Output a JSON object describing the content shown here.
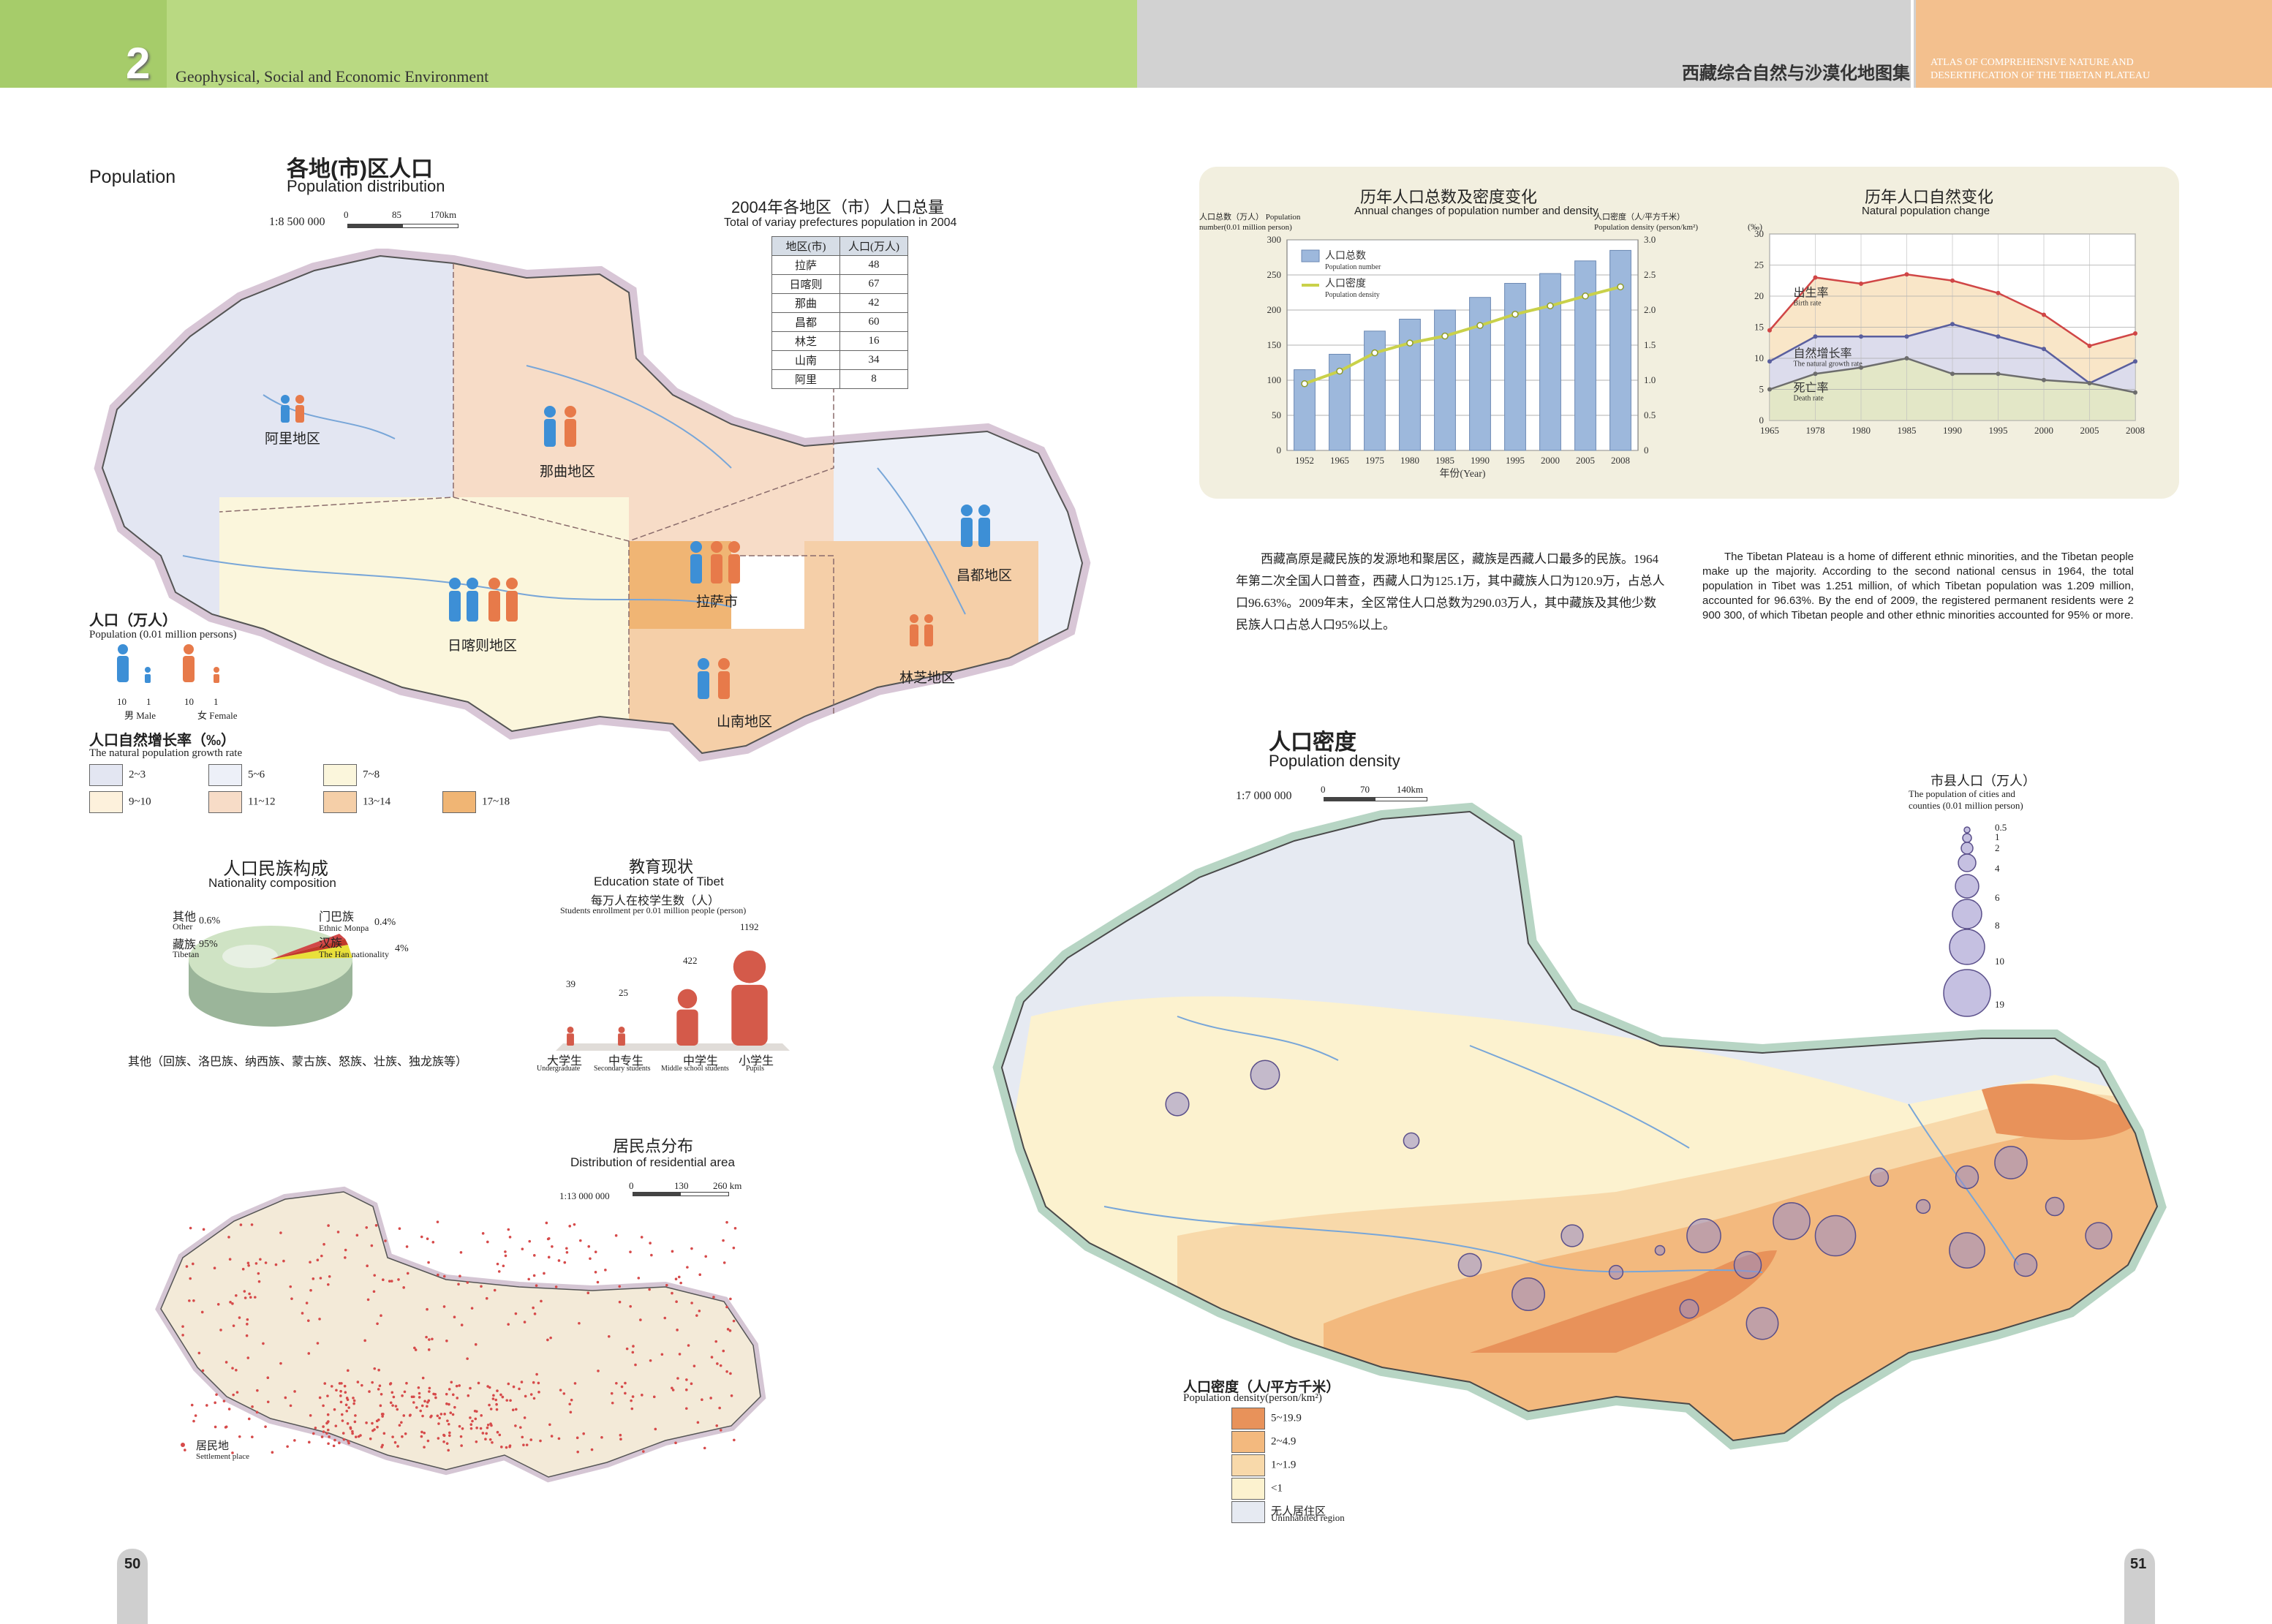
{
  "header": {
    "chapter_number": "2",
    "chapter_title": "Geophysical, Social and Economic Environment",
    "atlas_title_cn": "西藏综合自然与沙漠化地图集",
    "atlas_title_en_1": "ATLAS OF COMPREHENSIVE NATURE AND",
    "atlas_title_en_2": "DESERTIFICATION OF THE TIBETAN PLATEAU"
  },
  "colors": {
    "left_bar": "#b9d982",
    "grey_bar": "#d2d2d2",
    "orange_bar": "#f3c08e",
    "panel_bg": "#f2efdf"
  },
  "section_label": "Population",
  "dist_map": {
    "title_cn": "各地(市)区人口",
    "title_en": "Population distribution",
    "scale": "1:8 500 000",
    "scale_ticks": [
      "0",
      "85",
      "170km"
    ],
    "regions": [
      "阿里地区",
      "那曲地区",
      "日喀则地区",
      "拉萨市",
      "昌都地区",
      "林芝地区",
      "山南地区"
    ],
    "pop_legend_title_cn": "人口（万人）",
    "pop_legend_title_en": "Population (0.01 million persons)",
    "pop_legend_values": [
      "10",
      "1",
      "10",
      "1"
    ],
    "male_label": "男 Male",
    "female_label": "女 Female",
    "growth_title_cn": "人口自然增长率（‰）",
    "growth_title_en": "The natural population growth rate",
    "growth_classes": [
      {
        "label": "2~3",
        "color": "#e3e6f2"
      },
      {
        "label": "5~6",
        "color": "#edf0f8"
      },
      {
        "label": "7~8",
        "color": "#fbf6dc"
      },
      {
        "label": "9~10",
        "color": "#fdf1dc"
      },
      {
        "label": "11~12",
        "color": "#f7dcc7"
      },
      {
        "label": "13~14",
        "color": "#f5cfa8"
      },
      {
        "label": "17~18",
        "color": "#f0b574"
      }
    ]
  },
  "pop_table": {
    "title_cn": "2004年各地区（市）人口总量",
    "title_en": "Total of variay prefectures population in 2004",
    "headers": [
      "地区(市)",
      "人口(万人)"
    ],
    "rows": [
      [
        "拉萨",
        "48"
      ],
      [
        "日喀则",
        "67"
      ],
      [
        "那曲",
        "42"
      ],
      [
        "昌都",
        "60"
      ],
      [
        "林芝",
        "16"
      ],
      [
        "山南",
        "34"
      ],
      [
        "阿里",
        "8"
      ]
    ]
  },
  "nationality": {
    "title_cn": "人口民族构成",
    "title_en": "Nationality composition",
    "slices": [
      {
        "cn": "藏族",
        "en": "Tibetan",
        "pct": "95%",
        "value": 95,
        "color": "#cfe3c4"
      },
      {
        "cn": "汉族",
        "en": "The Han nationality",
        "pct": "4%",
        "value": 4,
        "color": "#e9e03a"
      },
      {
        "cn": "门巴族",
        "en": "Ethnic Monpa",
        "pct": "0.4%",
        "value": 0.4,
        "color": "#c0392b"
      },
      {
        "cn": "其他",
        "en": "Other",
        "pct": "0.6%",
        "value": 0.6,
        "color": "#d14848"
      }
    ],
    "note": "其他（回族、洛巴族、纳西族、蒙古族、怒族、壮族、独龙族等）"
  },
  "education": {
    "title_cn": "教育现状",
    "title_en": "Education state of Tibet",
    "subtitle": "每万人在校学生数（人）",
    "subtitle_en": "Students enrollment per 0.01 million people (person)",
    "items": [
      {
        "cn": "大学生",
        "en": "Undergraduate",
        "value": 39
      },
      {
        "cn": "中专生",
        "en": "Secondary students",
        "value": 25
      },
      {
        "cn": "中学生",
        "en": "Middle school students",
        "value": 422
      },
      {
        "cn": "小学生",
        "en": "Pupils",
        "value": 1192
      }
    ]
  },
  "residential": {
    "title_cn": "居民点分布",
    "title_en": "Distribution of residential area",
    "scale": "1:13 000 000",
    "scale_ticks": [
      "0",
      "130",
      "260 km"
    ],
    "legend_cn": "居民地",
    "legend_en": "Settlement place"
  },
  "charts_panel": {
    "chart_data": [
      {
        "type": "bar",
        "title": "历年人口总数及密度变化",
        "subtitle": "Annual changes of population number and density",
        "ylabel": "人口总数（万人） Population number(0.01 million person)",
        "y2label": "人口密度（人/平方千米） Population density (person/km²)",
        "xlabel": "年份(Year)",
        "categories": [
          "1952",
          "1965",
          "1975",
          "1980",
          "1985",
          "1990",
          "1995",
          "2000",
          "2005",
          "2008"
        ],
        "ylim": [
          0,
          300
        ],
        "y2lim": [
          0,
          3
        ],
        "yticks": [
          "0",
          "50",
          "100",
          "150",
          "200",
          "250",
          "300"
        ],
        "y2ticks": [
          "0",
          "0.5",
          "1.0",
          "1.5",
          "2.0",
          "2.5",
          "3.0"
        ],
        "series": [
          {
            "name": "人口总数 Population number",
            "axis": "left",
            "values": [
              115,
              137,
              170,
              187,
              200,
              218,
              238,
              252,
              270,
              285
            ],
            "color": "#9db8dc"
          },
          {
            "name": "人口密度 Population density",
            "axis": "right",
            "values": [
              0.95,
              1.13,
              1.39,
              1.53,
              1.63,
              1.78,
              1.94,
              2.06,
              2.2,
              2.33
            ],
            "color": "#c9d14a"
          }
        ]
      },
      {
        "type": "line",
        "title": "历年人口自然变化",
        "subtitle": "Natural population change",
        "ylabel": "(‰)",
        "categories": [
          "1965",
          "1978",
          "1980",
          "1985",
          "1990",
          "1995",
          "2000",
          "2005",
          "2008"
        ],
        "ylim": [
          0,
          30
        ],
        "yticks": [
          "0",
          "5",
          "10",
          "15",
          "20",
          "25",
          "30"
        ],
        "series": [
          {
            "name": "出生率 Birth rate",
            "values": [
              14.5,
              23,
              22,
              23.5,
              22.5,
              20.5,
              17,
              12,
              14
            ],
            "color": "#d04646",
            "fill": "#f9e6c8"
          },
          {
            "name": "自然增长率 The natural growth rate",
            "values": [
              9.5,
              13.5,
              13.5,
              13.5,
              15.5,
              13.5,
              11.5,
              6,
              9.5
            ],
            "color": "#5a5f9e",
            "fill": "#dcdcec"
          },
          {
            "name": "死亡率 Death rate",
            "values": [
              5,
              7.5,
              8.5,
              10,
              7.5,
              7.5,
              6.5,
              6,
              4.5
            ],
            "color": "#6d6d6d",
            "fill": "#e3e7c7"
          }
        ]
      }
    ]
  },
  "text_cn": "西藏高原是藏民族的发源地和聚居区，藏族是西藏人口最多的民族。1964年第二次全国人口普查，西藏人口为125.1万，其中藏族人口为120.9万，占总人口96.63%。2009年末，全区常住人口总数为290.03万人，其中藏族及其他少数民族人口占总人口95%以上。",
  "text_en": "The Tibetan Plateau is a home of different ethnic minorities, and the Tibetan people make up the majority. According to the second national census in 1964, the total population in Tibet was 1.251 million, of which Tibetan population was 1.209 million, accounted for 96.63%. By the end of 2009, the registered permanent residents were 2 900 300, of which Tibetan people and other ethnic minorities accounted for 95% or more.",
  "density_map": {
    "title_cn": "人口密度",
    "title_en": "Population density",
    "scale": "1:7 000 000",
    "scale_ticks": [
      "0",
      "70",
      "140km"
    ],
    "circle_title_cn": "市县人口（万人）",
    "circle_title_en_1": "The population of cities and",
    "circle_title_en_2": "counties (0.01 million person)",
    "circle_values": [
      "0.5",
      "1",
      "2",
      "4",
      "6",
      "8",
      "10",
      "19"
    ],
    "legend_title_cn": "人口密度（人/平方千米）",
    "legend_title_en": "Population density(person/km²)",
    "classes": [
      {
        "label": "5~19.9",
        "color": "#e8925a"
      },
      {
        "label": "2~4.9",
        "color": "#f3b97e"
      },
      {
        "label": "1~1.9",
        "color": "#f8d9aa"
      },
      {
        "label": "<1",
        "color": "#fcf2cf"
      },
      {
        "label": "无人居住区",
        "sub": "Uninhabited region",
        "color": "#e6eaf2"
      }
    ]
  },
  "page_numbers": {
    "left": "50",
    "right": "51"
  }
}
